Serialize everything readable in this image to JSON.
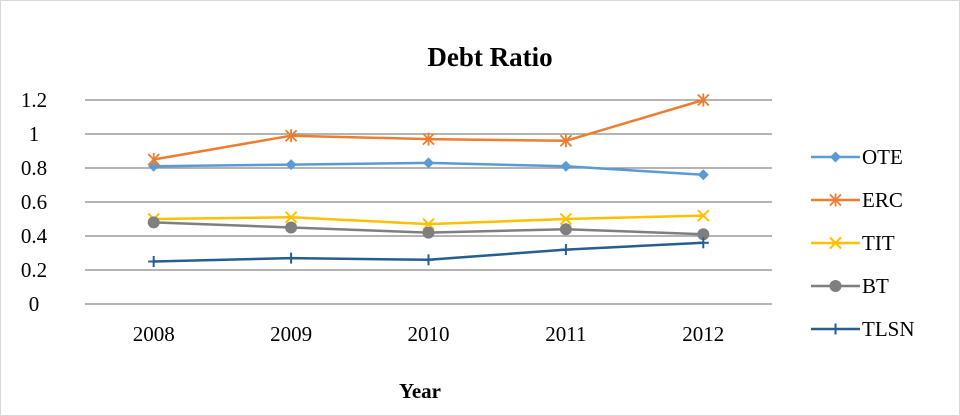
{
  "chart_data": {
    "type": "line",
    "title": "Debt Ratio",
    "xlabel": "Year",
    "ylabel": "",
    "categories": [
      "2008",
      "2009",
      "2010",
      "2011",
      "2012"
    ],
    "ylim": [
      0,
      1.2
    ],
    "yticks": [
      "0",
      "0.2",
      "0.4",
      "0.6",
      "0.8",
      "1",
      "1.2"
    ],
    "grid": true,
    "legend": "right",
    "series": [
      {
        "name": "OTE",
        "color": "#5b9bd5",
        "marker": "diamond",
        "values": [
          0.81,
          0.82,
          0.83,
          0.81,
          0.76
        ]
      },
      {
        "name": "ERC",
        "color": "#ed7d31",
        "marker": "asterisk",
        "values": [
          0.85,
          0.99,
          0.97,
          0.96,
          1.2
        ]
      },
      {
        "name": "TIT",
        "color": "#ffc000",
        "marker": "x",
        "values": [
          0.5,
          0.51,
          0.47,
          0.5,
          0.52
        ]
      },
      {
        "name": "BT",
        "color": "#7f7f7f",
        "marker": "circle",
        "values": [
          0.48,
          0.45,
          0.42,
          0.44,
          0.41
        ]
      },
      {
        "name": "TLSN",
        "color": "#255e91",
        "marker": "plus",
        "values": [
          0.25,
          0.27,
          0.26,
          0.32,
          0.36
        ]
      }
    ]
  }
}
